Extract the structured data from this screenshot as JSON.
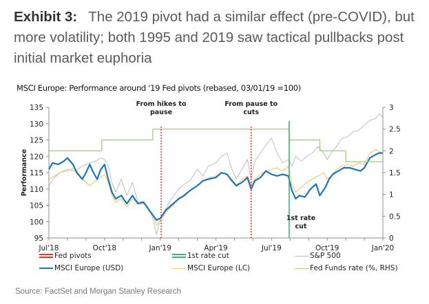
{
  "header": {
    "exhibit_label": "Exhibit 3:",
    "headline": "The 2019 pivot had a similar effect (pre-COVID), but more volatility; both 1995 and 2019 saw tactical pullbacks post initial market euphoria",
    "subtitle": "MSCI Europe: Performance around '19 Fed pivots (rebased, 03/01/19 =100)"
  },
  "footer": {
    "source": "Source: FactSet and Morgan Stanley Research"
  },
  "colors": {
    "fed_pivots": "#e8302a",
    "first_cut": "#3cb371",
    "sp500": "#bdbdbd",
    "msci_usd": "#1a75bb",
    "msci_lc": "#f5c97a",
    "fed_funds": "#9ed87a",
    "axis": "#8c8c8c"
  },
  "chart_data": {
    "type": "line",
    "title": "MSCI Europe: Performance around '19 Fed pivots (rebased, 03/01/19 =100)",
    "xlabel": "",
    "ylabel": "Performance",
    "y2label": "Fed Funds rate (%, RHS)",
    "x_unit": "months since Jul'18",
    "xlim": [
      0,
      18
    ],
    "ylim": [
      95,
      135
    ],
    "y2lim": [
      0,
      3
    ],
    "x_ticks": [
      {
        "label": "Jul'18",
        "x": 0
      },
      {
        "label": "Oct'18",
        "x": 3
      },
      {
        "label": "Jan'19",
        "x": 6
      },
      {
        "label": "Apr'19",
        "x": 9
      },
      {
        "label": "Jul'19",
        "x": 12
      },
      {
        "label": "Oct'19",
        "x": 15
      },
      {
        "label": "Jan'20",
        "x": 18
      }
    ],
    "y_ticks": [
      "95",
      "100",
      "105",
      "110",
      "115",
      "120",
      "125",
      "130",
      "135"
    ],
    "y2_ticks": [
      "0",
      "0.5",
      "1",
      "1.5",
      "2",
      "2.5",
      "3"
    ],
    "grid": false,
    "legend_position": "bottom",
    "legend": [
      {
        "key": "fed_pivots",
        "label": "Fed pivots",
        "style": "double"
      },
      {
        "key": "first_cut",
        "label": "1st rate cut",
        "style": "double"
      },
      {
        "key": "sp500",
        "label": "S&P 500",
        "style": "single"
      },
      {
        "key": "msci_usd",
        "label": "MSCI Europe (USD)",
        "style": "single"
      },
      {
        "key": "msci_lc",
        "label": "MSCI Europe (LC)",
        "style": "single"
      },
      {
        "key": "fed_funds",
        "label": "Fed Funds rate (%, RHS)",
        "style": "single"
      }
    ],
    "vlines": [
      {
        "key": "fed_pivots",
        "x": 6.05,
        "label": [
          "From hikes to",
          "pause"
        ],
        "label_pos": "top"
      },
      {
        "key": "fed_pivots",
        "x": 10.9,
        "label": [
          "From pause to",
          "cuts"
        ],
        "label_pos": "top"
      },
      {
        "key": "first_cut",
        "x": 12.95,
        "label": [
          "1st rate",
          "cut"
        ],
        "label_pos": "bottom"
      }
    ],
    "series": [
      {
        "name": "S&P 500",
        "key": "sp500",
        "axis": "left",
        "x": [
          0,
          0.3,
          0.6,
          1,
          1.4,
          1.8,
          2.2,
          2.5,
          2.8,
          3.0,
          3.2,
          3.4,
          3.6,
          3.9,
          4.2,
          4.5,
          4.8,
          5.1,
          5.4,
          5.6,
          5.8,
          6.0,
          6.3,
          6.6,
          7.0,
          7.3,
          7.6,
          8.0,
          8.3,
          8.6,
          9.0,
          9.3,
          9.6,
          9.8,
          10.1,
          10.4,
          10.7,
          10.9,
          11.1,
          11.4,
          11.7,
          12.0,
          12.3,
          12.6,
          12.9,
          13.1,
          13.3,
          13.6,
          13.9,
          14.2,
          14.5,
          14.8,
          15.0,
          15.2,
          15.5,
          15.8,
          16.1,
          16.4,
          16.7,
          17.0,
          17.3,
          17.6,
          17.8,
          18.0
        ],
        "y": [
          111,
          113.5,
          115,
          116,
          115.5,
          117,
          118,
          118.5,
          119.5,
          119,
          117,
          112,
          109,
          113,
          108,
          112,
          106,
          106,
          104,
          101,
          96,
          101,
          104,
          107,
          110,
          111.5,
          112.5,
          116,
          114,
          117,
          118,
          120,
          121,
          117,
          113,
          116,
          119,
          113,
          118.5,
          121,
          123.5,
          125.5,
          121,
          118,
          119,
          117,
          120,
          118.5,
          120,
          121,
          123,
          121,
          119,
          121,
          123,
          125.5,
          126,
          127.5,
          128,
          129.5,
          131,
          131.5,
          133,
          132
        ]
      },
      {
        "name": "MSCI Europe (LC)",
        "key": "msci_lc",
        "axis": "left",
        "x": [
          0,
          0.3,
          0.6,
          1,
          1.4,
          1.8,
          2.2,
          2.5,
          2.8,
          3.0,
          3.2,
          3.4,
          3.6,
          3.9,
          4.2,
          4.5,
          4.8,
          5.1,
          5.4,
          5.6,
          5.8,
          6.0,
          6.3,
          6.6,
          7.0,
          7.3,
          7.6,
          8.0,
          8.3,
          8.6,
          9.0,
          9.3,
          9.6,
          9.8,
          10.1,
          10.4,
          10.7,
          10.9,
          11.1,
          11.4,
          11.7,
          12.0,
          12.3,
          12.6,
          12.9,
          13.1,
          13.3,
          13.6,
          13.9,
          14.2,
          14.5,
          14.8,
          15.0,
          15.2,
          15.5,
          15.8,
          16.1,
          16.4,
          16.7,
          17.0,
          17.3,
          17.6,
          17.8,
          18.0
        ],
        "y": [
          113,
          114,
          115,
          115.5,
          116.5,
          113,
          111,
          112.5,
          113.5,
          114.5,
          112,
          108,
          106,
          107,
          104.5,
          107,
          105.5,
          105.5,
          104,
          102,
          99,
          100,
          103,
          104.5,
          107,
          108.5,
          109.5,
          111,
          112.5,
          113.5,
          114,
          115,
          114.5,
          112.5,
          111,
          113,
          114,
          111.5,
          113,
          114.5,
          115.5,
          116,
          116.5,
          115.5,
          117,
          111.5,
          109,
          110.5,
          112,
          113,
          114,
          115,
          113,
          114,
          116,
          117,
          117.5,
          117,
          118,
          117.5,
          121,
          122,
          121.5,
          121
        ]
      },
      {
        "name": "MSCI Europe (USD)",
        "key": "msci_usd",
        "axis": "left",
        "x": [
          0,
          0.2,
          0.5,
          0.8,
          1,
          1.3,
          1.5,
          1.8,
          2.0,
          2.2,
          2.4,
          2.6,
          2.8,
          3.0,
          3.2,
          3.4,
          3.6,
          3.9,
          4.2,
          4.5,
          4.8,
          5.1,
          5.4,
          5.6,
          5.8,
          6.0,
          6.3,
          6.6,
          7.0,
          7.3,
          7.6,
          8.0,
          8.3,
          8.6,
          9.0,
          9.3,
          9.6,
          9.8,
          10.1,
          10.4,
          10.7,
          10.9,
          11.1,
          11.4,
          11.7,
          12.0,
          12.3,
          12.6,
          12.9,
          13.1,
          13.3,
          13.5,
          13.8,
          14.1,
          14.4,
          14.6,
          14.9,
          15.1,
          15.3,
          15.6,
          15.9,
          16.2,
          16.5,
          16.8,
          17.0,
          17.3,
          17.6,
          17.8,
          18.0
        ],
        "y": [
          116,
          118,
          117.5,
          118.5,
          119.5,
          117.5,
          115,
          113,
          115,
          117.5,
          115,
          113,
          116,
          117.5,
          113,
          109,
          107,
          108,
          105.5,
          108,
          105.5,
          106,
          103.5,
          102,
          100.5,
          101,
          103.5,
          105,
          107,
          108,
          109.5,
          111,
          112.5,
          113,
          113.5,
          115,
          114.5,
          113,
          111,
          112,
          113.5,
          110,
          112.5,
          113.5,
          115.5,
          114.5,
          114,
          114.5,
          114,
          109.5,
          107,
          108,
          107.5,
          110,
          111.5,
          108,
          110.5,
          113,
          114.5,
          115.5,
          116.5,
          116.5,
          116,
          115.5,
          116.5,
          119.5,
          120.5,
          121,
          121
        ]
      },
      {
        "name": "Fed Funds rate (%, RHS)",
        "key": "fed_funds",
        "axis": "right",
        "step": true,
        "x": [
          0,
          2.85,
          5.6,
          12.95,
          14.6,
          16.0,
          18.0
        ],
        "y": [
          2.0,
          2.25,
          2.5,
          2.25,
          2.0,
          1.75,
          1.75
        ]
      }
    ]
  }
}
